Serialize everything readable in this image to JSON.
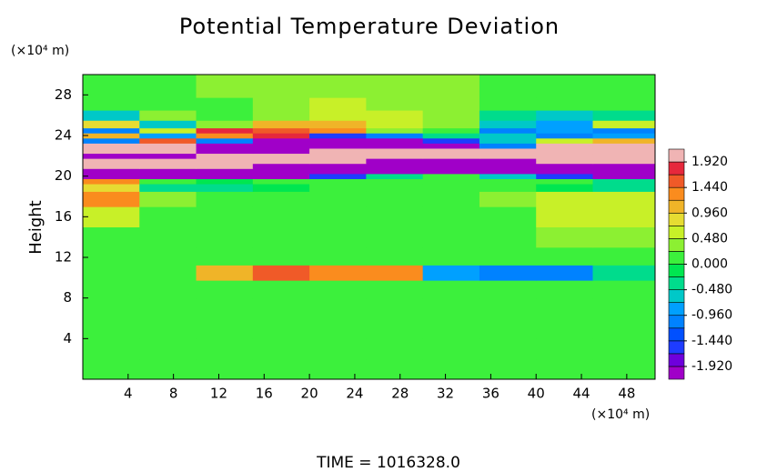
{
  "chart_data": {
    "type": "heatmap",
    "title": "Potential Temperature Deviation",
    "y_unit": "(×10⁴ m)",
    "x_unit": "(×10⁴ m)",
    "ylabel": "Height",
    "footer": "TIME  =  1016328.0",
    "xlim": [
      0,
      50.5
    ],
    "ylim": [
      0,
      30
    ],
    "xticks": [
      4,
      8,
      12,
      16,
      20,
      24,
      28,
      32,
      36,
      40,
      44,
      48
    ],
    "yticks": [
      4,
      8,
      12,
      16,
      20,
      24,
      28
    ],
    "x": [
      2.5,
      7.5,
      12.5,
      17.5,
      22.5,
      27.5,
      32.5,
      37.5,
      42.5,
      47.5
    ],
    "y": [
      1,
      3,
      5,
      7,
      9,
      10.5,
      12,
      14,
      16,
      18,
      19,
      19.5,
      20,
      20.5,
      21,
      21.5,
      22,
      22.5,
      23,
      23.5,
      24,
      24.5,
      25,
      26,
      27,
      28.5
    ],
    "z": [
      [
        0.1,
        0.1,
        0.1,
        0.1,
        0.1,
        0.1,
        0.1,
        0.1,
        0.1,
        0.1
      ],
      [
        0.1,
        0.1,
        0.1,
        0.1,
        0.1,
        0.1,
        0.1,
        0.1,
        0.1,
        0.1
      ],
      [
        0.1,
        0.1,
        0.1,
        0.1,
        0.1,
        0.1,
        0.1,
        0.1,
        0.1,
        0.1
      ],
      [
        0.1,
        0.1,
        0.1,
        0.1,
        0.1,
        0.1,
        0.1,
        0.1,
        0.1,
        0.1
      ],
      [
        0.2,
        0.2,
        0.2,
        0.2,
        0.2,
        0.2,
        0.2,
        0.2,
        0.2,
        0.2
      ],
      [
        0.1,
        0.2,
        1.0,
        1.5,
        1.3,
        1.4,
        -0.8,
        -1.1,
        -1.0,
        -0.3
      ],
      [
        0.2,
        0.2,
        0.2,
        0.2,
        0.2,
        0.2,
        0.2,
        0.2,
        0.2,
        0.2
      ],
      [
        0.1,
        0.1,
        0.1,
        0.1,
        0.1,
        0.1,
        0.1,
        0.2,
        0.4,
        0.4
      ],
      [
        0.5,
        0.1,
        0.1,
        0.1,
        0.1,
        0.1,
        0.1,
        0.2,
        0.5,
        0.6
      ],
      [
        1.3,
        0.3,
        0.1,
        0.1,
        0.1,
        0.1,
        0.2,
        0.3,
        0.6,
        0.5
      ],
      [
        0.8,
        -0.3,
        -0.3,
        -0.2,
        0,
        0,
        0,
        0,
        -0.2,
        -0.3
      ],
      [
        1.2,
        0,
        -0.2,
        0,
        0,
        0,
        0,
        0,
        0,
        -0.3
      ],
      [
        -2.5,
        -2.5,
        -2.5,
        -2.2,
        -1.5,
        -0.3,
        0,
        -0.5,
        -1.5,
        -2.5
      ],
      [
        -2.5,
        -2.5,
        -2.5,
        -2.5,
        -2.5,
        -2.5,
        -2.2,
        -2.5,
        -2.5,
        -2.5
      ],
      [
        2.5,
        2.5,
        2.5,
        -2.5,
        -2.5,
        -2.5,
        -2.5,
        -2.5,
        -2.5,
        -2.5
      ],
      [
        2.5,
        2.5,
        2.5,
        2.5,
        2.5,
        -2.0,
        -2.5,
        -2.5,
        2.5,
        2.5
      ],
      [
        -2.5,
        -2.5,
        2.5,
        2.5,
        2.5,
        2.5,
        2.5,
        2.5,
        2.5,
        2.5
      ],
      [
        2.5,
        2.5,
        -2.5,
        -2.5,
        2.5,
        2.5,
        2.5,
        2.5,
        2.5,
        2.5
      ],
      [
        2.5,
        2.0,
        -2.5,
        -2.5,
        -2.5,
        -2.5,
        -2.0,
        -1.0,
        2.2,
        2.5
      ],
      [
        -1.2,
        1.6,
        -1.0,
        -2.5,
        -2.5,
        -2.2,
        -1.5,
        -0.5,
        0.6,
        1.0
      ],
      [
        1.0,
        -0.8,
        1.2,
        1.8,
        -1.5,
        -1.2,
        -0.3,
        -0.6,
        -1.2,
        -0.8
      ],
      [
        -1.0,
        0.6,
        1.8,
        1.6,
        1.2,
        0.4,
        0.2,
        -1.0,
        -0.8,
        -1.2
      ],
      [
        0.8,
        -0.6,
        0.4,
        1.0,
        1.0,
        0.5,
        0.3,
        -0.5,
        -0.9,
        0.5
      ],
      [
        -0.6,
        0.3,
        0.2,
        0.4,
        0.7,
        0.5,
        0.3,
        -0.3,
        -0.6,
        -0.4
      ],
      [
        0.2,
        0.1,
        0.2,
        0.3,
        0.5,
        0.4,
        0.3,
        0.2,
        0.1,
        0.2
      ],
      [
        0.2,
        0.2,
        0.3,
        0.3,
        0.3,
        0.3,
        0.3,
        0.2,
        0.2,
        0.2
      ]
    ],
    "levels": [
      -1.92,
      -1.68,
      -1.44,
      -1.2,
      -0.96,
      -0.72,
      -0.48,
      -0.24,
      0,
      0.24,
      0.48,
      0.72,
      0.96,
      1.2,
      1.44,
      1.68,
      1.92
    ],
    "colors": [
      "#a000c8",
      "#6e00dc",
      "#1e3cff",
      "#0050ff",
      "#0082ff",
      "#00a0ff",
      "#00c8c8",
      "#00dc8c",
      "#00e650",
      "#3cf03c",
      "#8cf032",
      "#c8f028",
      "#e6dc32",
      "#f0b428",
      "#fa8c1e",
      "#f05a28",
      "#e6283c",
      "#f0b4b4"
    ],
    "cticks": [
      {
        "value": -1.92,
        "label": "-1.920"
      },
      {
        "value": -1.44,
        "label": "-1.440"
      },
      {
        "value": -0.96,
        "label": "-0.960"
      },
      {
        "value": -0.48,
        "label": "-0.480"
      },
      {
        "value": 0,
        "label": "0.000"
      },
      {
        "value": 0.48,
        "label": "0.480"
      },
      {
        "value": 0.96,
        "label": "0.960"
      },
      {
        "value": 1.44,
        "label": "1.440"
      },
      {
        "value": 1.92,
        "label": "1.920"
      }
    ]
  }
}
